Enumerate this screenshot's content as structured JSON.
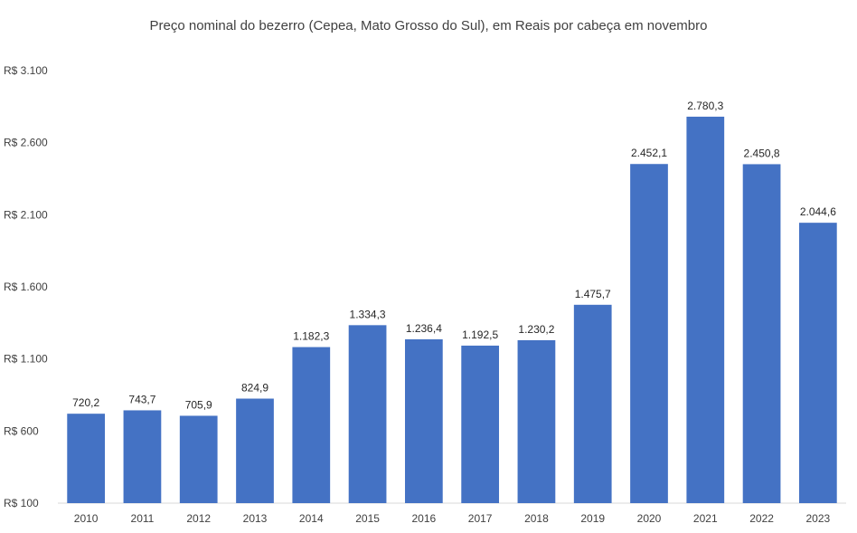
{
  "chart_data": {
    "type": "bar",
    "title": "Preço nominal do bezerro (Cepea, Mato Grosso do Sul), em Reais por cabeça em novembro",
    "xlabel": "",
    "ylabel": "",
    "categories": [
      "2010",
      "2011",
      "2012",
      "2013",
      "2014",
      "2015",
      "2016",
      "2017",
      "2018",
      "2019",
      "2020",
      "2021",
      "2022",
      "2023"
    ],
    "values": [
      720.2,
      743.7,
      705.9,
      824.9,
      1182.3,
      1334.3,
      1236.4,
      1192.5,
      1230.2,
      1475.7,
      2452.1,
      2780.3,
      2450.8,
      2044.6
    ],
    "data_labels": [
      "720,2",
      "743,7",
      "705,9",
      "824,9",
      "1.182,3",
      "1.334,3",
      "1.236,4",
      "1.192,5",
      "1.230,2",
      "1.475,7",
      "2.452,1",
      "2.780,3",
      "2.450,8",
      "2.044,6"
    ],
    "ylim": [
      100,
      3100
    ],
    "yticks": [
      100,
      600,
      1100,
      1600,
      2100,
      2600,
      3100
    ],
    "ytick_labels": [
      "R$ 100",
      "R$ 600",
      "R$ 1.100",
      "R$ 1.600",
      "R$ 2.100",
      "R$ 2.600",
      "R$ 3.100"
    ],
    "grid": false,
    "legend": "none",
    "bar_color": "#4472C4"
  }
}
